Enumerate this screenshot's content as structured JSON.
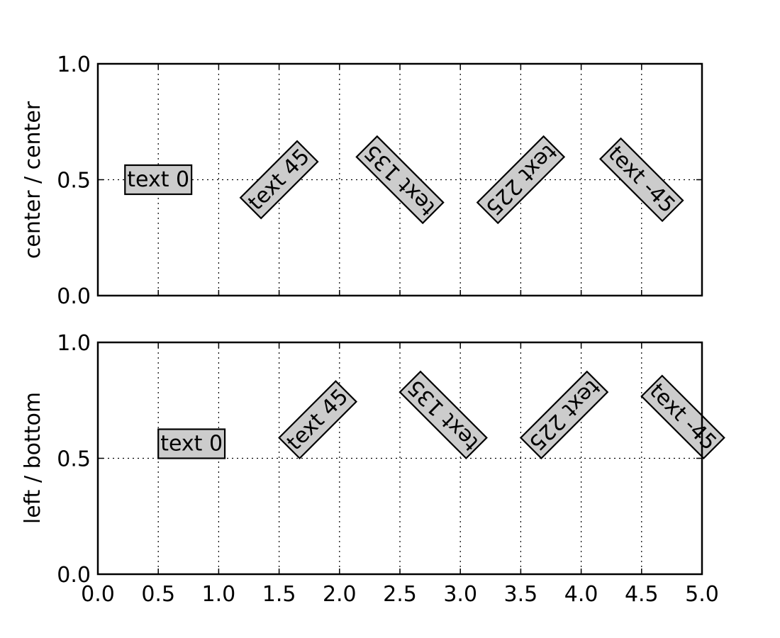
{
  "chart_data": [
    {
      "type": "text-rotation-demo",
      "ylabel": "center / center",
      "xlim": [
        0,
        5
      ],
      "ylim": [
        0,
        1
      ],
      "xticks": [
        "0.0",
        "0.5",
        "1.0",
        "1.5",
        "2.0",
        "2.5",
        "3.0",
        "3.5",
        "4.0",
        "4.5",
        "5.0"
      ],
      "yticks": [
        "0.0",
        "0.5",
        "1.0"
      ],
      "show_xtick_labels": false,
      "grid": true,
      "ha": "center",
      "va": "center",
      "annotations": [
        {
          "x": 0.5,
          "y": 0.5,
          "rotation": 0,
          "text": "text 0"
        },
        {
          "x": 1.5,
          "y": 0.5,
          "rotation": 45,
          "text": "text 45"
        },
        {
          "x": 2.5,
          "y": 0.5,
          "rotation": 135,
          "text": "text 135"
        },
        {
          "x": 3.5,
          "y": 0.5,
          "rotation": 225,
          "text": "text 225"
        },
        {
          "x": 4.5,
          "y": 0.5,
          "rotation": -45,
          "text": "text -45"
        }
      ]
    },
    {
      "type": "text-rotation-demo",
      "ylabel": "left / bottom",
      "xlim": [
        0,
        5
      ],
      "ylim": [
        0,
        1
      ],
      "xticks": [
        "0.0",
        "0.5",
        "1.0",
        "1.5",
        "2.0",
        "2.5",
        "3.0",
        "3.5",
        "4.0",
        "4.5",
        "5.0"
      ],
      "yticks": [
        "0.0",
        "0.5",
        "1.0"
      ],
      "show_xtick_labels": true,
      "grid": true,
      "ha": "left",
      "va": "bottom",
      "annotations": [
        {
          "x": 0.5,
          "y": 0.5,
          "rotation": 0,
          "text": "text 0"
        },
        {
          "x": 1.5,
          "y": 0.5,
          "rotation": 45,
          "text": "text 45"
        },
        {
          "x": 2.5,
          "y": 0.5,
          "rotation": 135,
          "text": "text 135"
        },
        {
          "x": 3.5,
          "y": 0.5,
          "rotation": 225,
          "text": "text 225"
        },
        {
          "x": 4.5,
          "y": 0.5,
          "rotation": -45,
          "text": "text -45"
        }
      ]
    }
  ]
}
